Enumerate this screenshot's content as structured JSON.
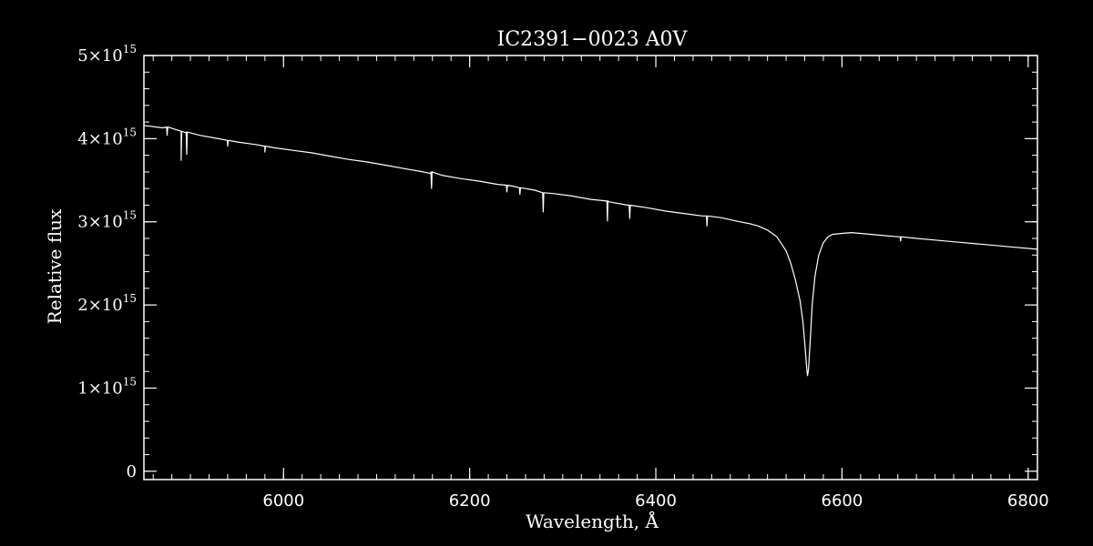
{
  "chart_data": {
    "type": "line",
    "title": "IC2391−0023  A0V",
    "xlabel": "Wavelength, Å",
    "ylabel": "Relative flux",
    "xlim": [
      5850,
      6810
    ],
    "ylim": [
      -100000000000000.0,
      5000000000000000.0
    ],
    "x_ticks": [
      {
        "value": 6000,
        "label": "6000"
      },
      {
        "value": 6200,
        "label": "6200"
      },
      {
        "value": 6400,
        "label": "6400"
      },
      {
        "value": 6600,
        "label": "6600"
      },
      {
        "value": 6800,
        "label": "6800"
      }
    ],
    "y_ticks": [
      {
        "value": 0,
        "mantissa": "0",
        "exponent": ""
      },
      {
        "value": 1000000000000000.0,
        "mantissa": "1×10",
        "exponent": "15"
      },
      {
        "value": 2000000000000000.0,
        "mantissa": "2×10",
        "exponent": "15"
      },
      {
        "value": 3000000000000000.0,
        "mantissa": "3×10",
        "exponent": "15"
      },
      {
        "value": 4000000000000000.0,
        "mantissa": "4×10",
        "exponent": "15"
      },
      {
        "value": 5000000000000000.0,
        "mantissa": "5×10",
        "exponent": "15"
      }
    ],
    "x_minor_step": 20,
    "y_minor_step": 200000000000000.0,
    "grid": false,
    "series": [
      {
        "color": "#ffffff",
        "x": [
          5850,
          5870,
          5890,
          5895,
          5910,
          5930,
          5950,
          5970,
          5980,
          5990,
          6010,
          6030,
          6050,
          6070,
          6090,
          6110,
          6130,
          6150,
          6158,
          6170,
          6190,
          6210,
          6230,
          6250,
          6270,
          6290,
          6310,
          6330,
          6350,
          6370,
          6390,
          6410,
          6430,
          6450,
          6470,
          6490,
          6500,
          6510,
          6520,
          6530,
          6540,
          6545,
          6550,
          6555,
          6558,
          6560,
          6562,
          6563,
          6564,
          6566,
          6568,
          6571,
          6575,
          6580,
          6585,
          6590,
          6600,
          6610,
          6620,
          6640,
          6660,
          6680,
          6700,
          6720,
          6740,
          6760,
          6780,
          6810
        ],
        "y": [
          4160000000000000.0,
          4130000000000000.0,
          4080000000000000.0,
          4070000000000000.0,
          4040000000000000.0,
          4000000000000000.0,
          3960000000000000.0,
          3930000000000000.0,
          3910000000000000.0,
          3890000000000000.0,
          3860000000000000.0,
          3830000000000000.0,
          3790000000000000.0,
          3750000000000000.0,
          3720000000000000.0,
          3680000000000000.0,
          3640000000000000.0,
          3600000000000000.0,
          3580000000000000.0,
          3560000000000000.0,
          3520000000000000.0,
          3490000000000000.0,
          3450000000000000.0,
          3420000000000000.0,
          3380000000000000.0,
          3340000000000000.0,
          3310000000000000.0,
          3270000000000000.0,
          3240000000000000.0,
          3200000000000000.0,
          3170000000000000.0,
          3130000000000000.0,
          3100000000000000.0,
          3070000000000000.0,
          3050000000000000.0,
          3000000000000000.0,
          2980000000000000.0,
          2950000000000000.0,
          2900000000000000.0,
          2820000000000000.0,
          2650000000000000.0,
          2500000000000000.0,
          2300000000000000.0,
          2050000000000000.0,
          1800000000000000.0,
          1550000000000000.0,
          1250000000000000.0,
          1150000000000000.0,
          1220000000000000.0,
          1600000000000000.0,
          2000000000000000.0,
          2350000000000000.0,
          2600000000000000.0,
          2750000000000000.0,
          2820000000000000.0,
          2850000000000000.0,
          2860000000000000.0,
          2870000000000000.0,
          2860000000000000.0,
          2840000000000000.0,
          2820000000000000.0,
          2800000000000000.0,
          2780000000000000.0,
          2760000000000000.0,
          2740000000000000.0,
          2720000000000000.0,
          2700000000000000.0,
          2670000000000000.0
        ]
      }
    ],
    "absorption_lines": [
      {
        "x": 5875,
        "y": 4140000000000000.0,
        "depth": 100000000000000.0
      },
      {
        "x": 5890,
        "y": 4090000000000000.0,
        "depth": 350000000000000.0
      },
      {
        "x": 5896,
        "y": 4080000000000000.0,
        "depth": 270000000000000.0
      },
      {
        "x": 5940,
        "y": 3980000000000000.0,
        "depth": 70000000000000.0
      },
      {
        "x": 5980,
        "y": 3910000000000000.0,
        "depth": 70000000000000.0
      },
      {
        "x": 6159,
        "y": 3600000000000000.0,
        "depth": 200000000000000.0
      },
      {
        "x": 6240,
        "y": 3440000000000000.0,
        "depth": 80000000000000.0
      },
      {
        "x": 6254,
        "y": 3410000000000000.0,
        "depth": 80000000000000.0
      },
      {
        "x": 6279,
        "y": 3350000000000000.0,
        "depth": 230000000000000.0
      },
      {
        "x": 6348,
        "y": 3250000000000000.0,
        "depth": 240000000000000.0
      },
      {
        "x": 6372,
        "y": 3200000000000000.0,
        "depth": 160000000000000.0
      },
      {
        "x": 6455,
        "y": 3070000000000000.0,
        "depth": 120000000000000.0
      },
      {
        "x": 6663,
        "y": 2820000000000000.0,
        "depth": 50000000000000.0
      }
    ]
  }
}
